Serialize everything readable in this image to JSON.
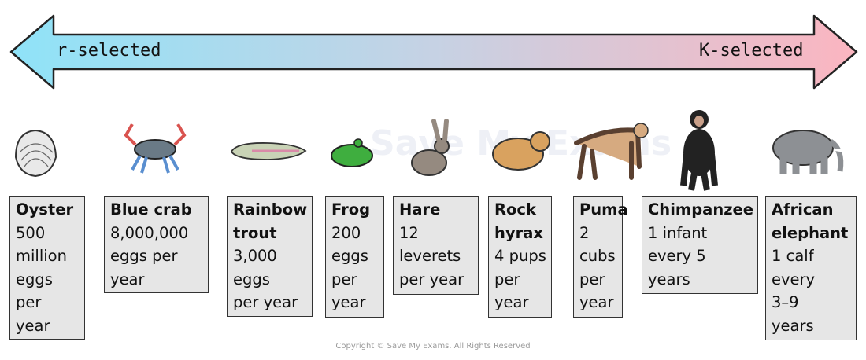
{
  "scale": {
    "left_label": "r-selected",
    "right_label": "K-selected",
    "colors": {
      "left": "#8fe3f8",
      "right": "#fbb5c0"
    }
  },
  "watermark": "Save My Exams",
  "organisms": [
    {
      "icon": "oyster-icon",
      "title": [
        "Oyster"
      ],
      "lines": [
        "500",
        "million",
        "eggs",
        "per",
        "year"
      ]
    },
    {
      "icon": "blue-crab-icon",
      "title": [
        "Blue crab"
      ],
      "lines": [
        "8,000,000",
        "eggs per",
        "year"
      ]
    },
    {
      "icon": "rainbow-trout-icon",
      "title": [
        "Rainbow",
        "trout"
      ],
      "lines": [
        "3,000",
        "eggs",
        "per year"
      ]
    },
    {
      "icon": "frog-icon",
      "title": [
        "Frog"
      ],
      "lines": [
        "200",
        "eggs",
        "per",
        "year"
      ]
    },
    {
      "icon": "hare-icon",
      "title": [
        "Hare"
      ],
      "lines": [
        "12",
        "leverets",
        "per year"
      ]
    },
    {
      "icon": "rock-hyrax-icon",
      "title": [
        "Rock",
        "hyrax"
      ],
      "lines": [
        "4 pups",
        "per",
        "year"
      ]
    },
    {
      "icon": "puma-icon",
      "title": [
        "Puma"
      ],
      "lines": [
        "2",
        "cubs",
        "per",
        "year"
      ]
    },
    {
      "icon": "chimpanzee-icon",
      "title": [
        "Chimpanzee"
      ],
      "lines": [
        "1 infant",
        "every 5",
        "years"
      ]
    },
    {
      "icon": "african-elephant-icon",
      "title": [
        "African",
        "elephant"
      ],
      "lines": [
        "1 calf",
        "every",
        "3–9",
        "years"
      ]
    }
  ],
  "copyright": "Copyright © Save My Exams. All Rights Reserved"
}
